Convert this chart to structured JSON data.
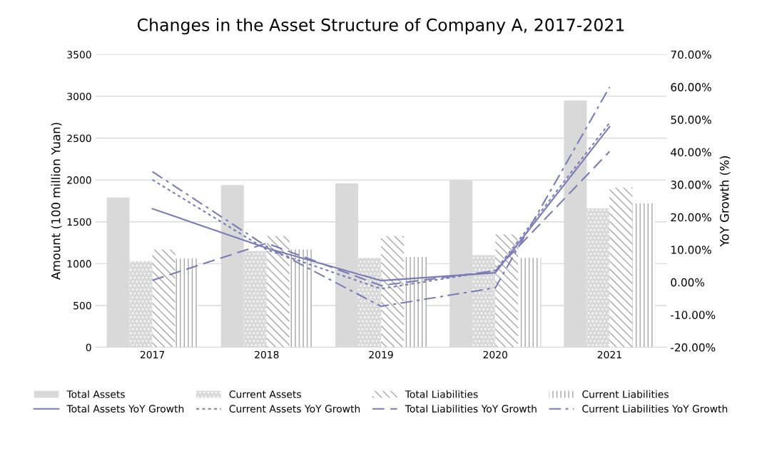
{
  "chart_data": {
    "type": "bar",
    "title": "Changes in the Asset Structure of Company A, 2017-2021",
    "categories": [
      "2017",
      "2018",
      "2019",
      "2020",
      "2021"
    ],
    "ylabel": "Amount (100 million Yuan)",
    "y2label": "YoY Growth (%)",
    "ylim": [
      0,
      3500
    ],
    "yticks": [
      0,
      500,
      1000,
      1500,
      2000,
      2500,
      3000,
      3500
    ],
    "y2lim": [
      -20,
      70
    ],
    "y2ticks": [
      {
        "value": -20,
        "label": "-20.00%"
      },
      {
        "value": -10,
        "label": "-10.00%"
      },
      {
        "value": 0,
        "label": "0.00%"
      },
      {
        "value": 10,
        "label": "10.00%"
      },
      {
        "value": 20,
        "label": "20.00%"
      },
      {
        "value": 30,
        "label": "30.00%"
      },
      {
        "value": 40,
        "label": "40.00%"
      },
      {
        "value": 50,
        "label": "50.00%"
      },
      {
        "value": 60,
        "label": "60.00%"
      },
      {
        "value": 70,
        "label": "70.00%"
      }
    ],
    "grid": "y",
    "legend": "bottom",
    "series": [
      {
        "name": "Total Assets",
        "color": "#d9d9d9",
        "values": [
          1790,
          1940,
          1960,
          2000,
          2950
        ]
      },
      {
        "name": "Current Assets",
        "color": "#d9d9d9",
        "values": [
          1030,
          1150,
          1070,
          1100,
          1660
        ]
      },
      {
        "name": "Total Liabilities",
        "color": "#a6a6a6",
        "values": [
          1170,
          1330,
          1330,
          1350,
          1910
        ]
      },
      {
        "name": "Current Liabilities",
        "color": "#a6a6a6",
        "values": [
          1060,
          1170,
          1080,
          1070,
          1720
        ]
      },
      {
        "name": "Total Assets YoY Growth",
        "type": "line",
        "axis": "y2",
        "line_style": "solid",
        "color": "#7b7bb5",
        "values": [
          22.6,
          10.5,
          0.5,
          2.9,
          47.8
        ]
      },
      {
        "name": "Current Assets YoY Growth",
        "type": "line",
        "axis": "y2",
        "line_style": "dotted",
        "color": "#7b7bb5",
        "values": [
          31.5,
          10,
          -2,
          3.6,
          49
        ]
      },
      {
        "name": "Total Liabilities YoY Growth",
        "type": "line",
        "axis": "y2",
        "line_style": "dashed",
        "color": "#7b7bb5",
        "values": [
          0.6,
          12,
          -1,
          3.5,
          40.2
        ]
      },
      {
        "name": "Current Liabilities YoY Growth",
        "type": "line",
        "axis": "y2",
        "line_style": "dashdot",
        "color": "#7b7bb5",
        "values": [
          34,
          11,
          -7.4,
          -1.7,
          60
        ]
      }
    ]
  }
}
